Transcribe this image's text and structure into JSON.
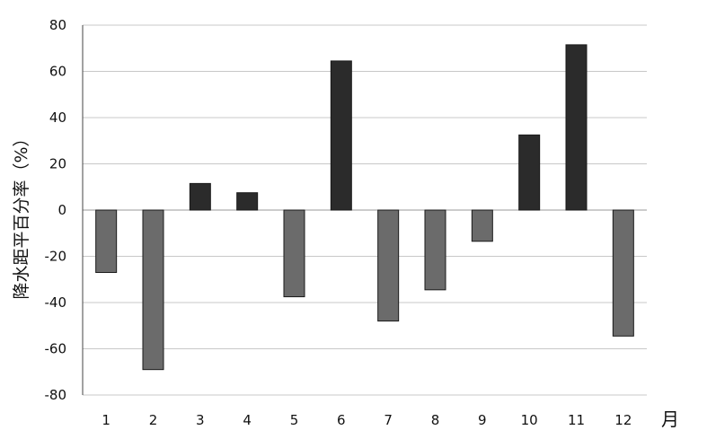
{
  "chart_data": {
    "type": "bar",
    "categories": [
      "1",
      "2",
      "3",
      "4",
      "5",
      "6",
      "7",
      "8",
      "9",
      "10",
      "11",
      "12"
    ],
    "values": [
      -27,
      -69,
      11.5,
      7.5,
      -37.5,
      64.5,
      -48,
      -34.5,
      -13.5,
      32.5,
      71.5,
      -54.5
    ],
    "ylabel": "降水距平百分率（%）",
    "xlabel": "月",
    "ylim": [
      -80,
      80
    ],
    "yticks": [
      80,
      60,
      40,
      20,
      0,
      -20,
      -40,
      -60,
      -80
    ],
    "grid": true,
    "colors": {
      "positive": "#2b2b2b",
      "negative": "#6b6b6b",
      "grid": "#c8c8c8",
      "axis": "#444444"
    }
  }
}
